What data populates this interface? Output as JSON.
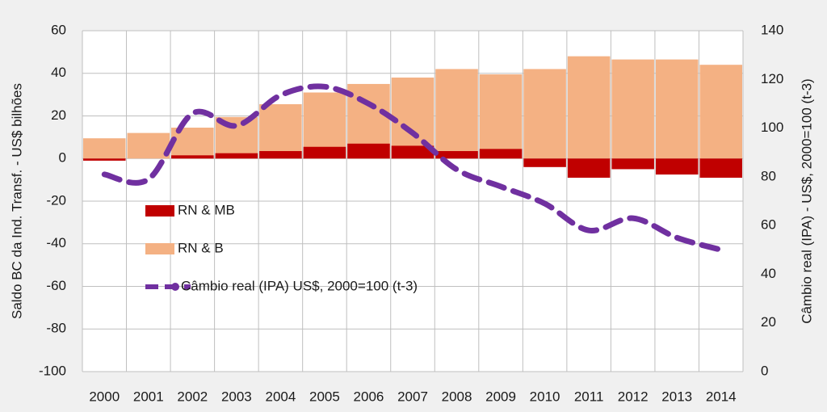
{
  "chart_data": {
    "type": "bar-line",
    "categories": [
      "2000",
      "2001",
      "2002",
      "2003",
      "2004",
      "2005",
      "2006",
      "2007",
      "2008",
      "2009",
      "2010",
      "2011",
      "2012",
      "2013",
      "2014"
    ],
    "series": [
      {
        "name": "RN & B",
        "color": "#f4b183",
        "values": [
          9.5,
          12,
          14.5,
          19.5,
          25.5,
          31,
          35,
          38,
          42,
          39.5,
          42,
          48,
          46.5,
          46.5,
          44
        ]
      },
      {
        "name": "RN & MB",
        "color": "#c00000",
        "values": [
          -1,
          0,
          1.5,
          2.5,
          3.5,
          5.5,
          7,
          6,
          3.5,
          4.5,
          -4,
          -9,
          -5,
          -7.5,
          -9
        ]
      },
      {
        "name": "Câmbio real (IPA) US$, 2000=100 (t-3)",
        "color": "#7030a0",
        "axis": "y2",
        "values": [
          81,
          79,
          106,
          101,
          113.5,
          117,
          110,
          98,
          83,
          76,
          69,
          58,
          63,
          55,
          50
        ]
      }
    ],
    "ylabel": "Saldo BC da Ind. Transf. - US$ bilhões",
    "y2label": "Câmbio real (IPA) - US$, 2000=100 (t-3)",
    "ylim": [
      -100,
      60
    ],
    "yticks": [
      -100,
      -80,
      -60,
      -40,
      -20,
      0,
      20,
      40,
      60
    ],
    "y2lim": [
      0,
      140
    ],
    "y2ticks": [
      0,
      20,
      40,
      60,
      80,
      100,
      120,
      140
    ],
    "grid": true
  }
}
